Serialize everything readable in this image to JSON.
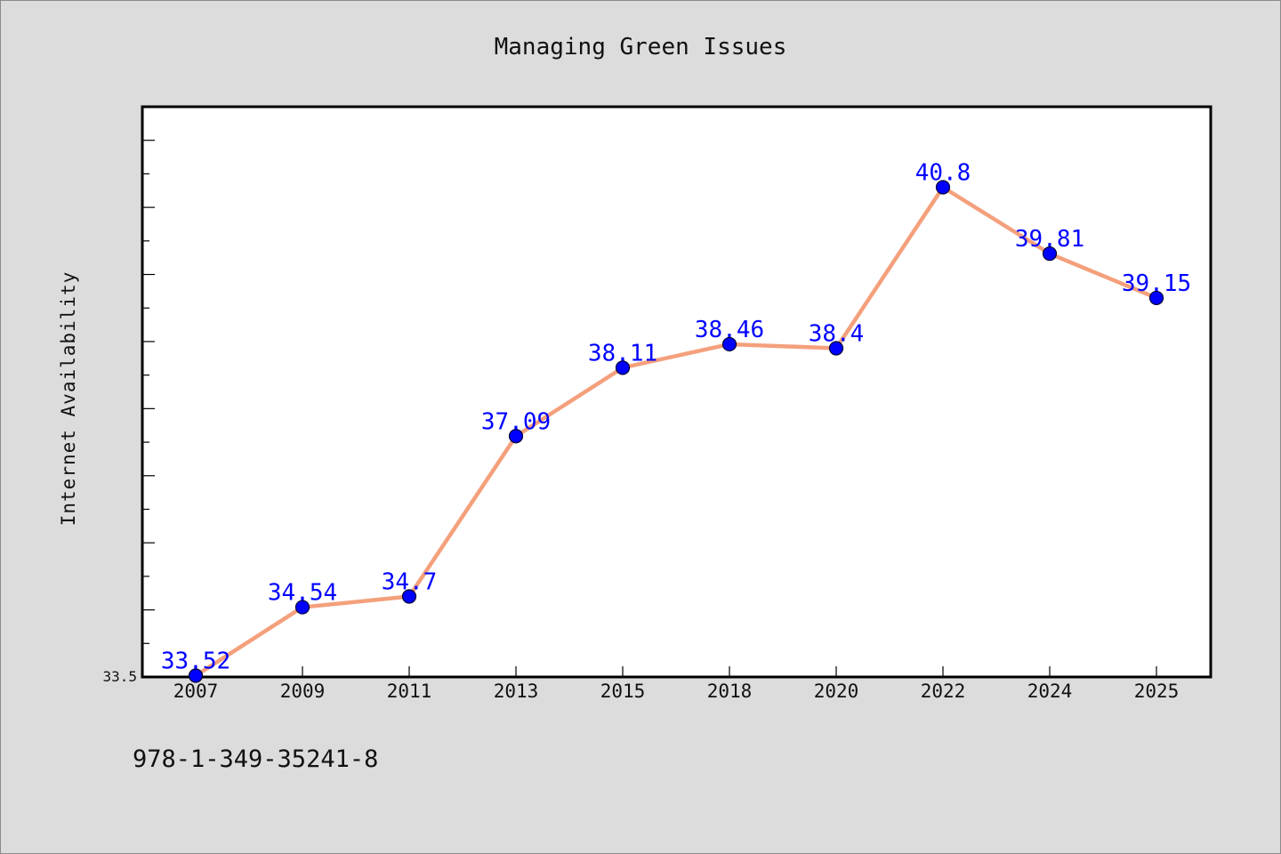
{
  "chart_data": {
    "type": "line",
    "title": "Managing Green Issues",
    "xlabel": "",
    "ylabel": "Internet Availability",
    "categories": [
      "2007",
      "2009",
      "2011",
      "2013",
      "2015",
      "2018",
      "2020",
      "2022",
      "2024",
      "2025"
    ],
    "series": [
      {
        "values": [
          33.52,
          34.54,
          34.7,
          37.09,
          38.11,
          38.46,
          38.4,
          40.8,
          39.81,
          39.15
        ],
        "line_color": "#f4a07c",
        "marker_color": "#0000ff"
      }
    ],
    "data_labels": [
      "33.52",
      "34.54",
      "34.7",
      "37.09",
      "38.11",
      "38.46",
      "38.4",
      "40.8",
      "39.81",
      "39.15"
    ],
    "ylim": [
      33.5,
      42.0
    ],
    "ytick_labels": [
      "33.5"
    ],
    "grid": false,
    "legend": "none"
  },
  "footer": {
    "text": "978-1-349-35241-8"
  },
  "colors": {
    "background": "#dcdcdc",
    "plot_background": "#ffffff",
    "line": "#f4a07c",
    "marker": "#0000ff",
    "label": "#0000ff"
  }
}
